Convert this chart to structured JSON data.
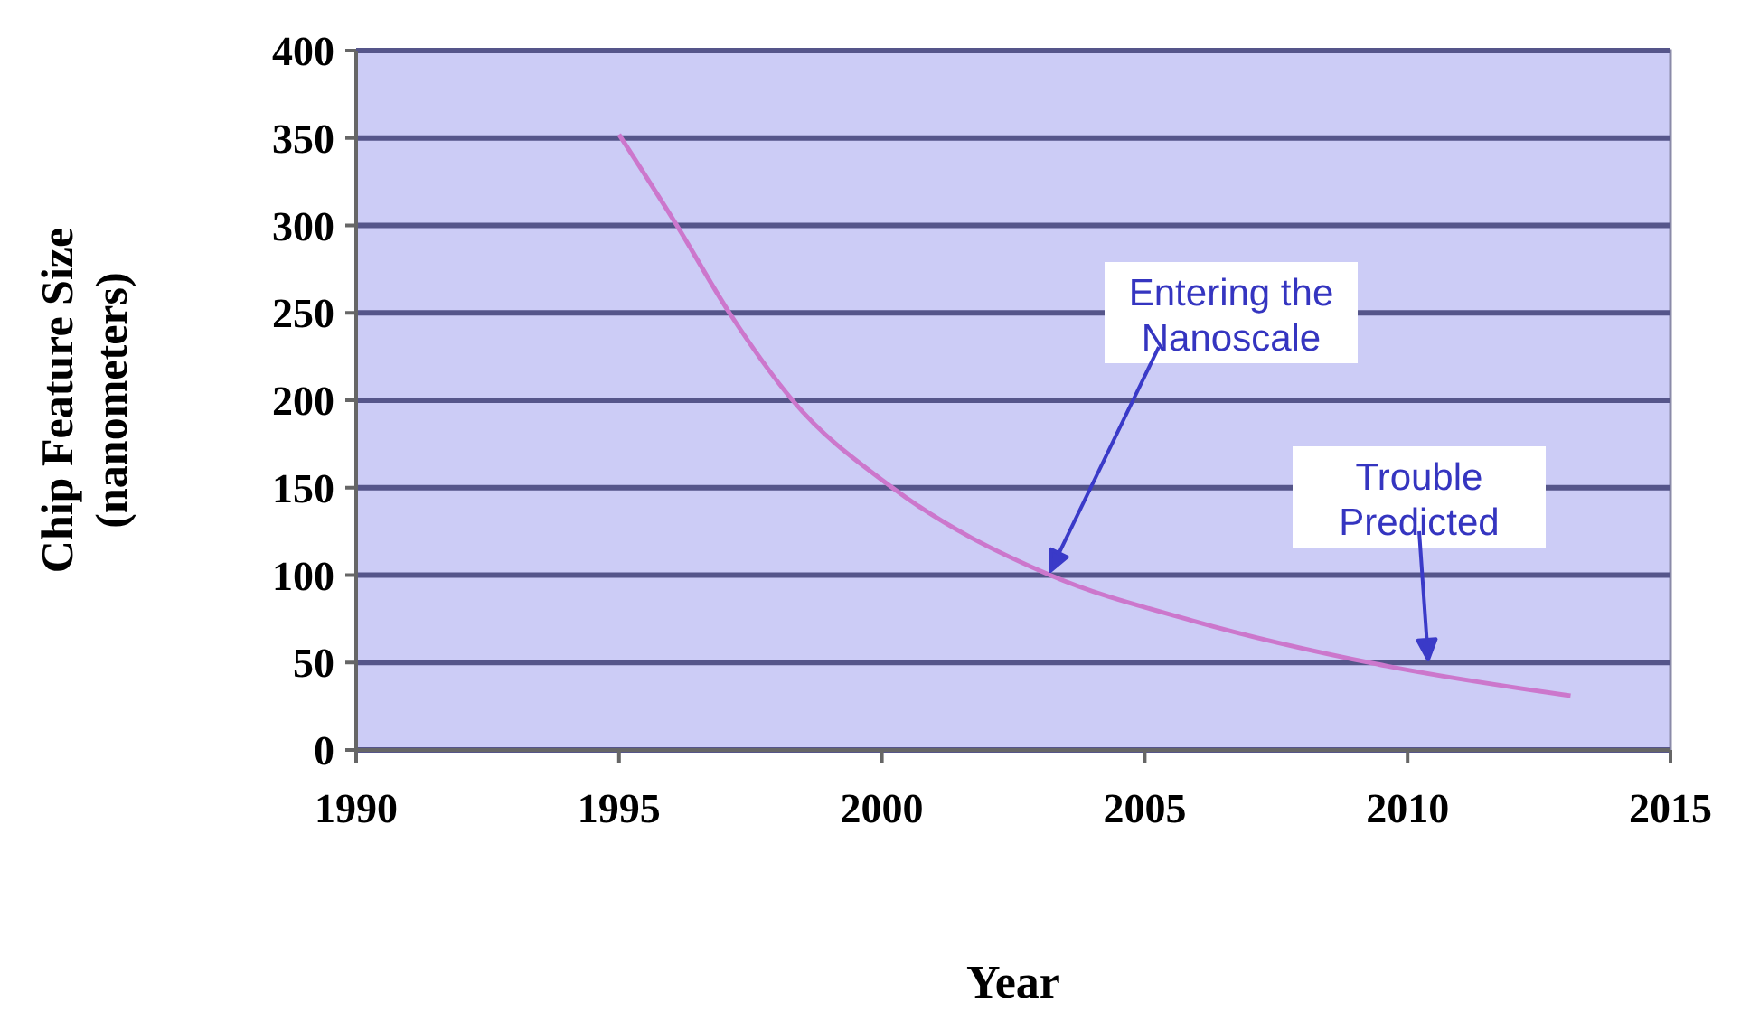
{
  "chart_data": {
    "type": "line",
    "xlabel": "Year",
    "ylabel": "Chip Feature Size\n(nanometers)",
    "x": [
      1995,
      1996.1,
      1997.1,
      1998.3,
      2000.2,
      2003.2,
      2005.9,
      2009.6,
      2013.1
    ],
    "series": [
      {
        "color": "#cc77cc",
        "values": [
          352,
          300,
          250,
          200,
          150,
          100,
          74,
          48,
          31
        ]
      }
    ],
    "xlim": [
      1990,
      2015
    ],
    "xticks": [
      1990,
      1995,
      2000,
      2005,
      2010,
      2015
    ],
    "ylim": [
      0,
      400
    ],
    "yticks": [
      0,
      50,
      100,
      150,
      200,
      250,
      300,
      350,
      400
    ],
    "grid": "y",
    "marker": "none",
    "line_style": "solid",
    "annotations": [
      "Entering the\nNanoscale",
      "Trouble\nPredicted"
    ]
  }
}
